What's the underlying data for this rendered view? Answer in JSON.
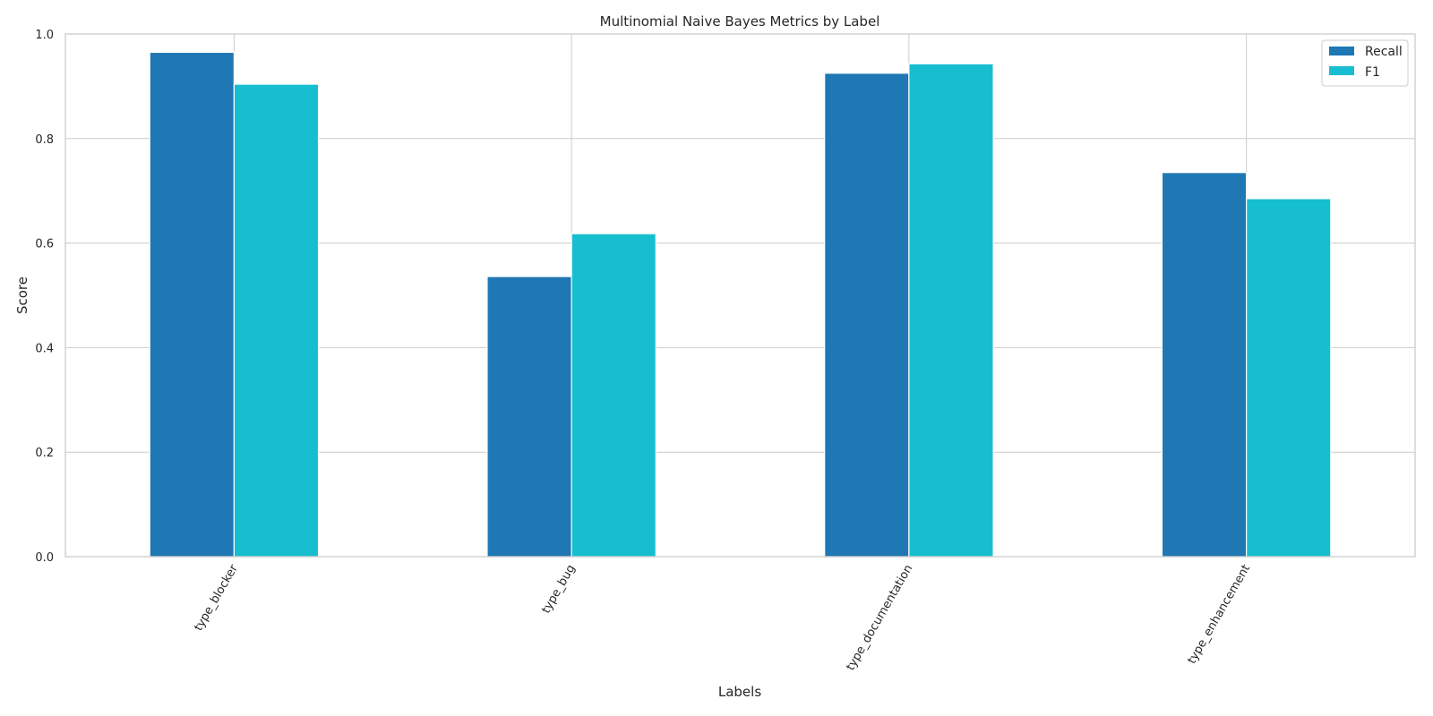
{
  "chart_data": {
    "type": "bar",
    "title": "Multinomial Naive Bayes Metrics by Label",
    "xlabel": "Labels",
    "ylabel": "Score",
    "categories": [
      "type_blocker",
      "type_bug",
      "type_documentation",
      "type_enhancement"
    ],
    "series": [
      {
        "name": "Recall",
        "color": "#1f77b4",
        "values": [
          0.965,
          0.536,
          0.925,
          0.735
        ]
      },
      {
        "name": "F1",
        "color": "#17becf",
        "values": [
          0.904,
          0.618,
          0.943,
          0.685
        ]
      }
    ],
    "ylim": [
      0,
      1.0
    ],
    "yticks": [
      "0.0",
      "0.2",
      "0.4",
      "0.6",
      "0.8",
      "1.0"
    ],
    "grid": true,
    "legend_position": "top-right",
    "tick_label_rotation": "60 degrees"
  }
}
